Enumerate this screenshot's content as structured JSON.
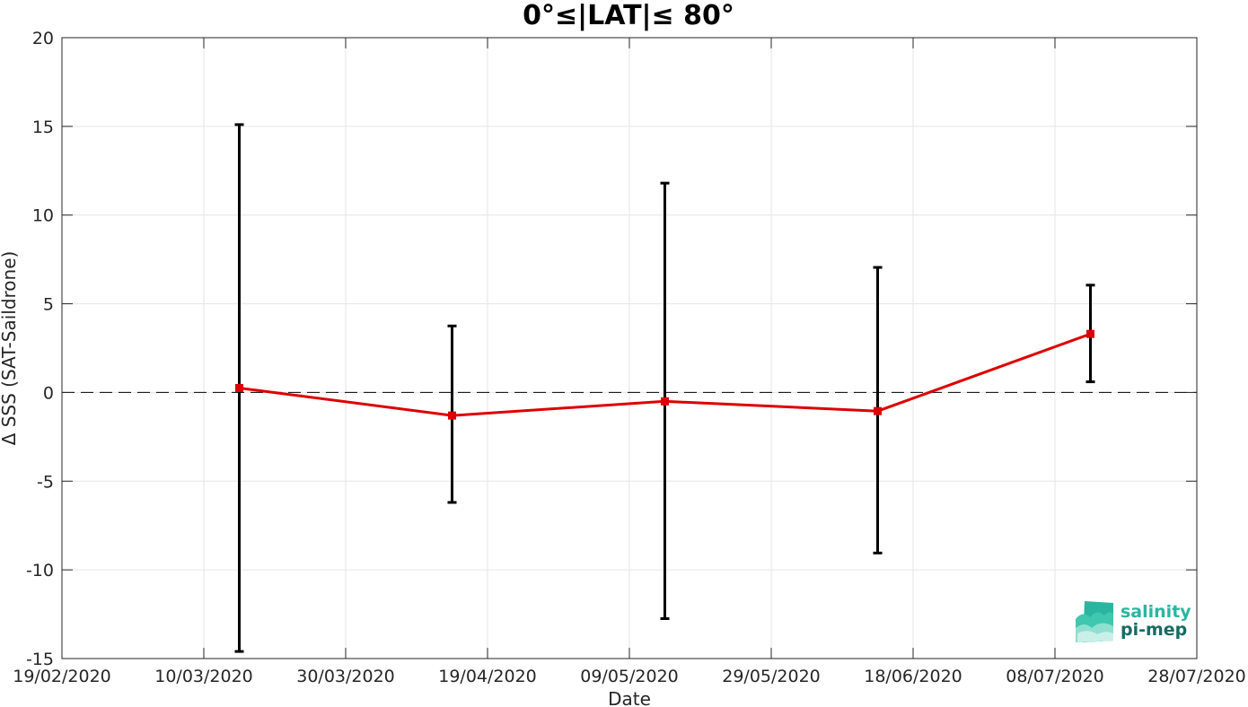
{
  "chart_data": {
    "type": "line",
    "title": "0°≤|LAT|≤ 80°",
    "xlabel": "Date",
    "ylabel": "Δ SSS (SAT-Saildrone)",
    "x_ticks": [
      "19/02/2020",
      "10/03/2020",
      "30/03/2020",
      "19/04/2020",
      "09/05/2020",
      "29/05/2020",
      "18/06/2020",
      "08/07/2020",
      "28/07/2020"
    ],
    "x_range": [
      "19/02/2020",
      "28/07/2020"
    ],
    "ylim": [
      -15,
      20
    ],
    "y_ticks": [
      -15,
      -10,
      -5,
      0,
      5,
      10,
      15,
      20
    ],
    "y_tick_labels": [
      "-15",
      "-10",
      "-5",
      "0",
      "5",
      "10",
      "15",
      "20"
    ],
    "grid": true,
    "reference_line": {
      "y": 0,
      "style": "dashed",
      "color": "#000000"
    },
    "series": [
      {
        "color": "#dd0000",
        "errorbar_color": "#000000",
        "points": [
          {
            "x": "15/03/2020",
            "y": 0.25,
            "y_low": -14.6,
            "y_high": 15.1
          },
          {
            "x": "14/04/2020",
            "y": -1.3,
            "y_low": -6.2,
            "y_high": 3.75
          },
          {
            "x": "14/05/2020",
            "y": -0.5,
            "y_low": -12.75,
            "y_high": 11.8
          },
          {
            "x": "13/06/2020",
            "y": -1.05,
            "y_low": -9.05,
            "y_high": 7.05
          },
          {
            "x": "13/07/2020",
            "y": 3.3,
            "y_low": 0.6,
            "y_high": 6.05
          }
        ]
      }
    ]
  },
  "logo": {
    "line1": "salinity",
    "line2": "pi-mep",
    "color_top": "#2bb5a0",
    "color_bottom": "#166b62",
    "icon": "waves-logo-icon"
  }
}
